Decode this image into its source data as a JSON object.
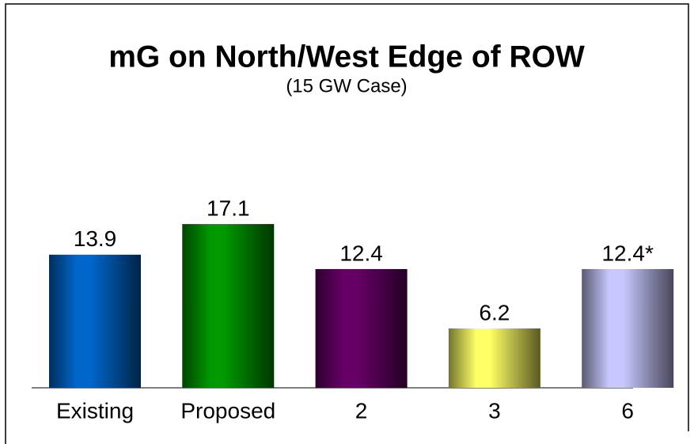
{
  "chart_data": {
    "type": "bar",
    "title": "mG on North/West Edge of ROW",
    "subtitle": "(15 GW Case)",
    "categories": [
      "Existing",
      "Proposed",
      "2",
      "3",
      "6"
    ],
    "values": [
      13.9,
      17.1,
      12.4,
      6.2,
      12.4
    ],
    "value_labels": [
      "13.9",
      "17.1",
      "12.4",
      "6.2",
      "12.4*"
    ],
    "colors": [
      "#0066cc",
      "#009900",
      "#660066",
      "#ffff66",
      "#c8c8ff"
    ]
  }
}
